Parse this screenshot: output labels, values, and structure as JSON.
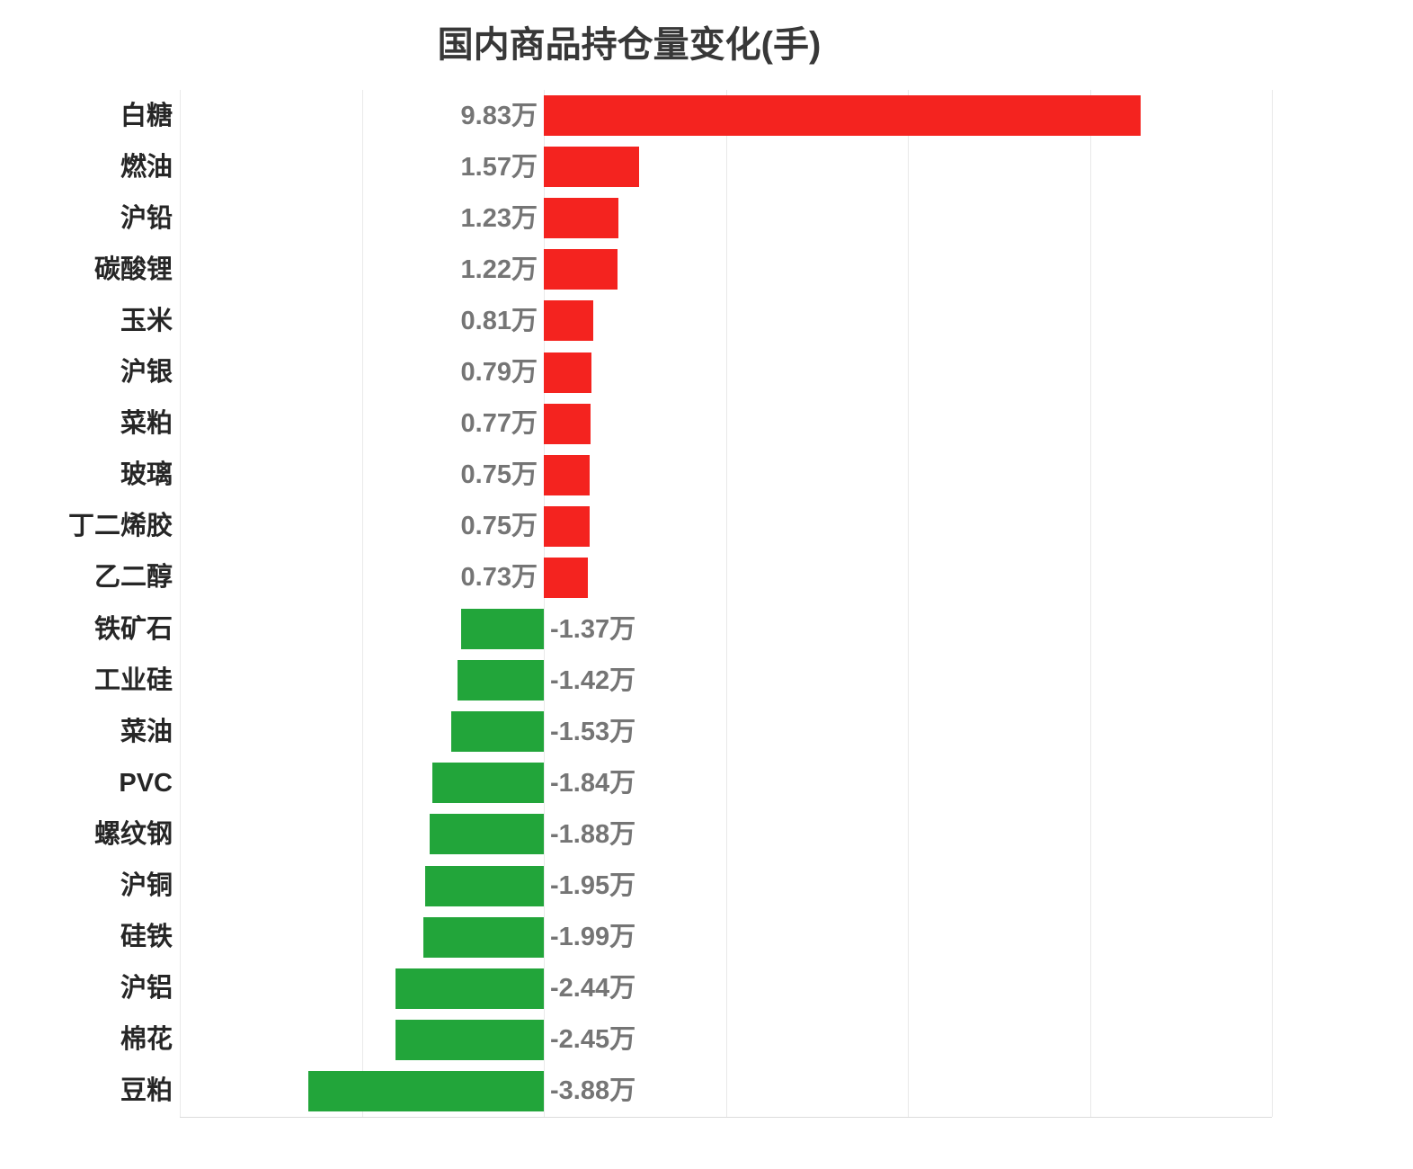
{
  "chart_data": {
    "type": "bar",
    "orientation": "horizontal",
    "title": "国内商品持仓量变化(手)",
    "unit": "万",
    "categories": [
      "白糖",
      "燃油",
      "沪铅",
      "碳酸锂",
      "玉米",
      "沪银",
      "菜粕",
      "玻璃",
      "丁二烯胶",
      "乙二醇",
      "铁矿石",
      "工业硅",
      "菜油",
      "PVC",
      "螺纹钢",
      "沪铜",
      "硅铁",
      "沪铝",
      "棉花",
      "豆粕"
    ],
    "values": [
      9.83,
      1.57,
      1.23,
      1.22,
      0.81,
      0.79,
      0.77,
      0.75,
      0.75,
      0.73,
      -1.37,
      -1.42,
      -1.53,
      -1.84,
      -1.88,
      -1.95,
      -1.99,
      -2.44,
      -2.45,
      -3.88
    ],
    "value_labels": [
      "9.83万",
      "1.57万",
      "1.23万",
      "1.22万",
      "0.81万",
      "0.79万",
      "0.77万",
      "0.75万",
      "0.75万",
      "0.73万",
      "-1.37万",
      "-1.42万",
      "-1.53万",
      "-1.84万",
      "-1.88万",
      "-1.95万",
      "-1.99万",
      "-2.44万",
      "-2.45万",
      "-3.88万"
    ],
    "positive_color": "#f4231f",
    "negative_color": "#22a53a",
    "xlim": [
      -6,
      12
    ],
    "grid_step": 3,
    "grid": true,
    "legend": false,
    "x_tick_labels_visible": false
  }
}
